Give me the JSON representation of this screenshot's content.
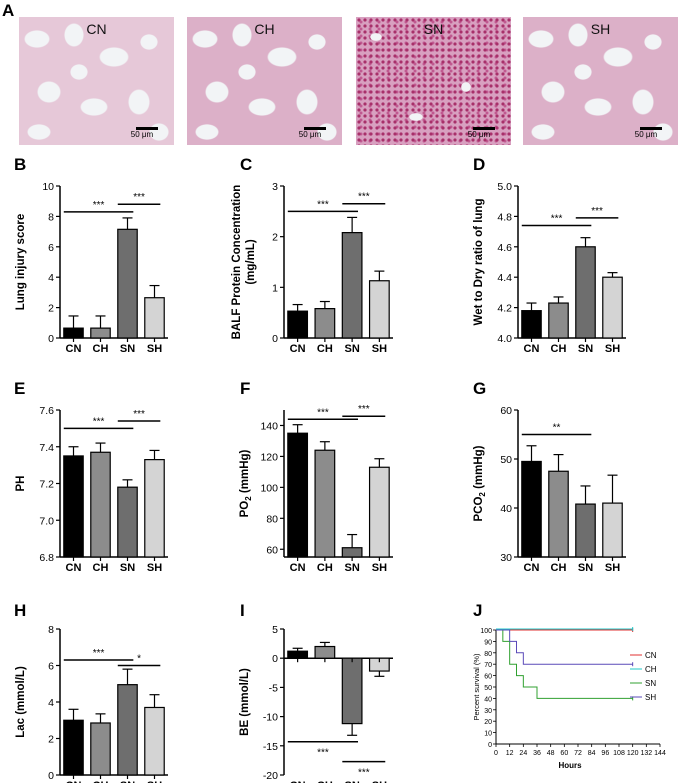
{
  "panel_A": {
    "letter": "A",
    "images": [
      {
        "label": "CN",
        "scale": "50 μm"
      },
      {
        "label": "CH",
        "scale": "50 μm"
      },
      {
        "label": "SN",
        "scale": "50 μm"
      },
      {
        "label": "SH",
        "scale": "50 μm"
      }
    ]
  },
  "colors": {
    "CN": "#000000",
    "CH": "#8c8c8c",
    "SN": "#6e6e6e",
    "SH": "#d4d4d4"
  },
  "chart_data": [
    {
      "panel": "B",
      "type": "bar",
      "ylabel": "Lung injury score",
      "categories": [
        "CN",
        "CH",
        "SN",
        "SH"
      ],
      "values": [
        0.65,
        0.65,
        7.15,
        2.65
      ],
      "errors": [
        0.8,
        0.8,
        0.75,
        0.8
      ],
      "ylim": [
        0,
        10
      ],
      "yticks": [
        0,
        2,
        4,
        6,
        8,
        10
      ],
      "yticklabels": [
        "0",
        "2",
        "4",
        "6",
        "8",
        "10"
      ],
      "sig": [
        {
          "from": 0,
          "to": 2,
          "y": 8.3,
          "label": "***"
        },
        {
          "from": 2,
          "to": 3,
          "y": 8.8,
          "label": "***"
        }
      ]
    },
    {
      "panel": "C",
      "type": "bar",
      "ylabel": "BALF Protein Concentration (mg/mL)",
      "categories": [
        "CN",
        "CH",
        "SN",
        "SH"
      ],
      "values": [
        0.53,
        0.58,
        2.08,
        1.13
      ],
      "errors": [
        0.13,
        0.14,
        0.3,
        0.19
      ],
      "ylim": [
        0,
        3
      ],
      "yticks": [
        0,
        1,
        2,
        3
      ],
      "yticklabels": [
        "0",
        "1",
        "2",
        "3"
      ],
      "sig": [
        {
          "from": 0,
          "to": 2,
          "y": 2.5,
          "label": "***"
        },
        {
          "from": 2,
          "to": 3,
          "y": 2.65,
          "label": "***"
        }
      ]
    },
    {
      "panel": "D",
      "type": "bar",
      "ylabel": "Wet to Dry ratio of lung",
      "categories": [
        "CN",
        "CH",
        "SN",
        "SH"
      ],
      "values": [
        4.18,
        4.23,
        4.6,
        4.4
      ],
      "errors": [
        0.05,
        0.04,
        0.06,
        0.03
      ],
      "ylim": [
        4.0,
        5.0
      ],
      "yticks": [
        4.0,
        4.2,
        4.4,
        4.6,
        4.8,
        5.0
      ],
      "yticklabels": [
        "4.0",
        "4.2",
        "4.4",
        "4.6",
        "4.8",
        "5.0"
      ],
      "sig": [
        {
          "from": 0,
          "to": 2,
          "y": 4.74,
          "label": "***"
        },
        {
          "from": 2,
          "to": 3,
          "y": 4.79,
          "label": "***"
        }
      ]
    },
    {
      "panel": "E",
      "type": "bar",
      "ylabel": "PH",
      "categories": [
        "CN",
        "CH",
        "SN",
        "SH"
      ],
      "values": [
        7.35,
        7.37,
        7.18,
        7.33
      ],
      "errors": [
        0.05,
        0.05,
        0.04,
        0.05
      ],
      "ylim": [
        6.8,
        7.6
      ],
      "yticks": [
        6.8,
        7.0,
        7.2,
        7.4,
        7.6
      ],
      "yticklabels": [
        "6.8",
        "7.0",
        "7.2",
        "7.4",
        "7.6"
      ],
      "sig": [
        {
          "from": 0,
          "to": 2,
          "y": 7.5,
          "label": "***"
        },
        {
          "from": 2,
          "to": 3,
          "y": 7.54,
          "label": "***"
        }
      ]
    },
    {
      "panel": "F",
      "type": "bar",
      "ylabel": "PO",
      "ylabel_sub": "2",
      "ylabel_unit": "(mmHg)",
      "categories": [
        "CN",
        "CH",
        "SN",
        "SH"
      ],
      "values": [
        135,
        124,
        61,
        113
      ],
      "errors": [
        5.5,
        5.5,
        8.5,
        5.5
      ],
      "ylim": [
        55,
        150
      ],
      "yticks": [
        60,
        80,
        100,
        120,
        140
      ],
      "yticklabels": [
        "60",
        "80",
        "100",
        "120",
        "140"
      ],
      "sig": [
        {
          "from": 0,
          "to": 2,
          "y": 144,
          "label": "***"
        },
        {
          "from": 2,
          "to": 3,
          "y": 146,
          "label": "***"
        }
      ]
    },
    {
      "panel": "G",
      "type": "bar",
      "ylabel": "PCO",
      "ylabel_sub": "2",
      "ylabel_unit": "(mmHg)",
      "categories": [
        "CN",
        "CH",
        "SN",
        "SH"
      ],
      "values": [
        49.5,
        47.5,
        40.8,
        41
      ],
      "errors": [
        3.2,
        3.4,
        3.7,
        5.7
      ],
      "ylim": [
        30,
        60
      ],
      "yticks": [
        30,
        40,
        50,
        60
      ],
      "yticklabels": [
        "30",
        "40",
        "50",
        "60"
      ],
      "sig": [
        {
          "from": 0,
          "to": 2,
          "y": 55,
          "label": "**"
        }
      ]
    },
    {
      "panel": "H",
      "type": "bar",
      "ylabel": "Lac (mmol/L)",
      "categories": [
        "CN",
        "CH",
        "SN",
        "SH"
      ],
      "values": [
        3.0,
        2.85,
        4.95,
        3.7
      ],
      "errors": [
        0.6,
        0.5,
        0.85,
        0.7
      ],
      "ylim": [
        0,
        8
      ],
      "yticks": [
        0,
        2,
        4,
        6,
        8
      ],
      "yticklabels": [
        "0",
        "2",
        "4",
        "6",
        "8"
      ],
      "sig": [
        {
          "from": 0,
          "to": 2,
          "y": 6.3,
          "label": "***"
        },
        {
          "from": 2,
          "to": 3,
          "y": 6.0,
          "label": "*"
        }
      ]
    },
    {
      "panel": "I",
      "type": "bar",
      "ylabel": "BE (mmol/L)",
      "categories": [
        "CN",
        "CH",
        "SN",
        "SH"
      ],
      "values": [
        1.2,
        2.0,
        -11.2,
        -2.2
      ],
      "errors": [
        0.5,
        0.7,
        2.0,
        0.9
      ],
      "ylim": [
        -20,
        5
      ],
      "yticks": [
        -20,
        -15,
        -10,
        -5,
        0,
        5
      ],
      "yticklabels": [
        "-20",
        "-15",
        "-10",
        "-5",
        "0",
        "5"
      ],
      "sig": [
        {
          "from": 0,
          "to": 2,
          "y": -14.3,
          "label": "***",
          "label_below": true
        },
        {
          "from": 2,
          "to": 3,
          "y": -17.7,
          "label": "***",
          "label_below": true
        }
      ]
    },
    {
      "panel": "J",
      "type": "line",
      "ylabel": "Percent survival (%)",
      "xlabel": "Hours",
      "xlim": [
        0,
        144
      ],
      "ylim": [
        0,
        100
      ],
      "xticks": [
        0,
        12,
        24,
        36,
        48,
        60,
        72,
        84,
        96,
        108,
        120,
        132,
        144
      ],
      "yticks": [
        0,
        10,
        20,
        30,
        40,
        50,
        60,
        70,
        80,
        90,
        100
      ],
      "legend_position": "right",
      "series": [
        {
          "name": "CN",
          "color": "#e03030",
          "x": [
            0,
            120
          ],
          "y": [
            100,
            100
          ]
        },
        {
          "name": "CH",
          "color": "#20c8c8",
          "x": [
            0,
            120
          ],
          "y": [
            100,
            100
          ]
        },
        {
          "name": "SN",
          "color": "#30a030",
          "x": [
            0,
            6,
            6,
            12,
            12,
            18,
            18,
            24,
            24,
            36,
            36,
            120
          ],
          "y": [
            100,
            100,
            90,
            90,
            70,
            70,
            60,
            60,
            50,
            50,
            40,
            40
          ]
        },
        {
          "name": "SH",
          "color": "#5a4ab8",
          "x": [
            0,
            12,
            12,
            18,
            18,
            24,
            24,
            30,
            30,
            120
          ],
          "y": [
            100,
            100,
            90,
            90,
            80,
            80,
            70,
            70,
            70,
            70
          ]
        }
      ]
    }
  ]
}
